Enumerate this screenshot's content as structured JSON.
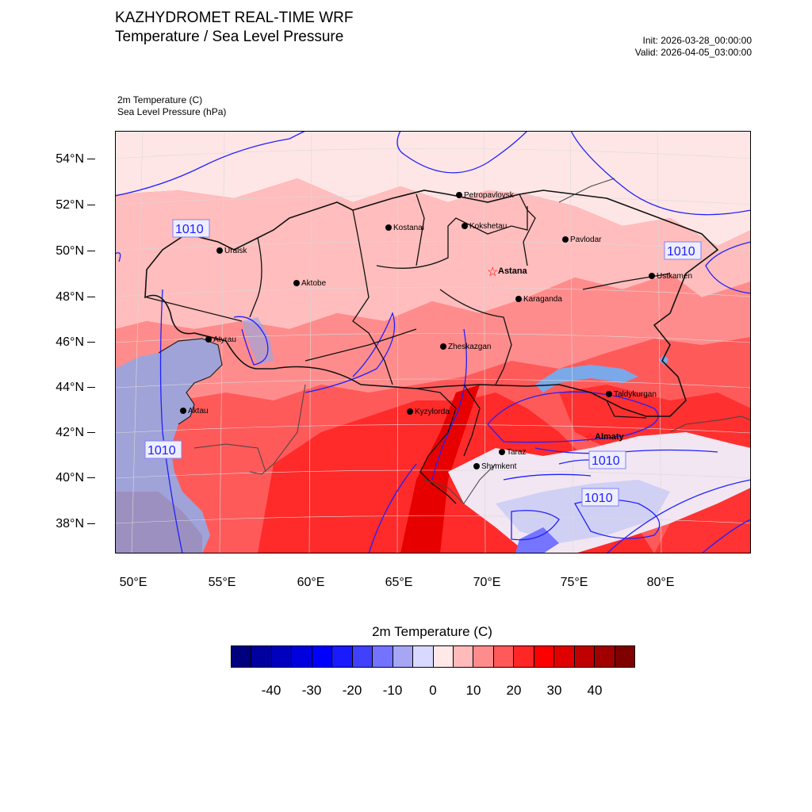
{
  "header": {
    "title": "KAZHYDROMET REAL-TIME WRF",
    "subtitle": "Temperature / Sea Level Pressure",
    "init": "Init: 2026-03-28_00:00:00",
    "valid": "Valid: 2026-04-05_03:00:00"
  },
  "fields": {
    "temperature": "2m Temperature   (C)",
    "pressure": "Sea Level Pressure   (hPa)"
  },
  "map": {
    "lat_labels": [
      "54°N",
      "52°N",
      "50°N",
      "48°N",
      "46°N",
      "44°N",
      "42°N",
      "40°N",
      "38°N"
    ],
    "lon_labels": [
      "50°E",
      "55°E",
      "60°E",
      "65°E",
      "70°E",
      "75°E",
      "80°E"
    ],
    "isobar_label": "1010",
    "cities": [
      {
        "name": "Petropavlovsk",
        "capital": false
      },
      {
        "name": "Kostanai",
        "capital": false
      },
      {
        "name": "Kokshetau",
        "capital": false
      },
      {
        "name": "Pavlodar",
        "capital": false
      },
      {
        "name": "Uralsk",
        "capital": false
      },
      {
        "name": "Astana",
        "capital": true
      },
      {
        "name": "Aktobe",
        "capital": false
      },
      {
        "name": "Ustkamen",
        "capital": false
      },
      {
        "name": "Karaganda",
        "capital": false
      },
      {
        "name": "Atyrau",
        "capital": false
      },
      {
        "name": "Zheskazgan",
        "capital": false
      },
      {
        "name": "Taldykurgan",
        "capital": false
      },
      {
        "name": "Aktau",
        "capital": false
      },
      {
        "name": "Kyzylorda",
        "capital": false
      },
      {
        "name": "Almaty",
        "capital": true
      },
      {
        "name": "Taraz",
        "capital": false
      },
      {
        "name": "Shymkent",
        "capital": false
      }
    ]
  },
  "colorbar": {
    "title": "2m Temperature  (C)",
    "labels": [
      "-40",
      "-30",
      "-20",
      "-10",
      "0",
      "10",
      "20",
      "30",
      "40"
    ],
    "colors": [
      "#00007f",
      "#00009f",
      "#0000bf",
      "#0000df",
      "#0000ff",
      "#1a1aff",
      "#4040ff",
      "#7373ff",
      "#a6a6f5",
      "#d9d9ff",
      "#ffe8e8",
      "#ffbaba",
      "#ff8c8c",
      "#ff5959",
      "#ff2626",
      "#ff0000",
      "#e00000",
      "#c00000",
      "#a00000",
      "#800000"
    ]
  },
  "colors": {
    "isobar": "#2020ff",
    "border": "#000000",
    "capital_star": "#ff0000"
  }
}
